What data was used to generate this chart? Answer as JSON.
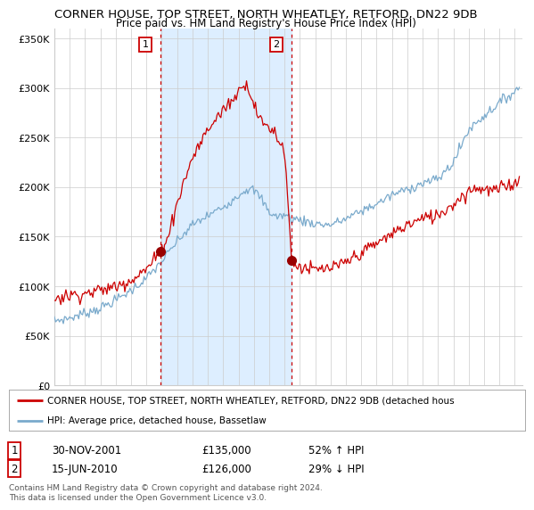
{
  "title1": "CORNER HOUSE, TOP STREET, NORTH WHEATLEY, RETFORD, DN22 9DB",
  "title2": "Price paid vs. HM Land Registry's House Price Index (HPI)",
  "ylim": [
    0,
    360000
  ],
  "yticks": [
    0,
    50000,
    100000,
    150000,
    200000,
    250000,
    300000,
    350000
  ],
  "ytick_labels": [
    "£0",
    "£50K",
    "£100K",
    "£150K",
    "£200K",
    "£250K",
    "£300K",
    "£350K"
  ],
  "sale1_date": 2001.917,
  "sale1_price": 135000,
  "sale2_date": 2010.458,
  "sale2_price": 126000,
  "legend_line1": "CORNER HOUSE, TOP STREET, NORTH WHEATLEY, RETFORD, DN22 9DB (detached hous",
  "legend_line2": "HPI: Average price, detached house, Bassetlaw",
  "table_row1": [
    "1",
    "30-NOV-2001",
    "£135,000",
    "52% ↑ HPI"
  ],
  "table_row2": [
    "2",
    "15-JUN-2010",
    "£126,000",
    "29% ↓ HPI"
  ],
  "footnote": "Contains HM Land Registry data © Crown copyright and database right 2024.\nThis data is licensed under the Open Government Licence v3.0.",
  "bg_color": "#ffffff",
  "grid_color": "#cccccc",
  "red_color": "#cc0000",
  "blue_color": "#7aaacc",
  "shade_color": "#ddeeff",
  "marker_color": "#990000"
}
